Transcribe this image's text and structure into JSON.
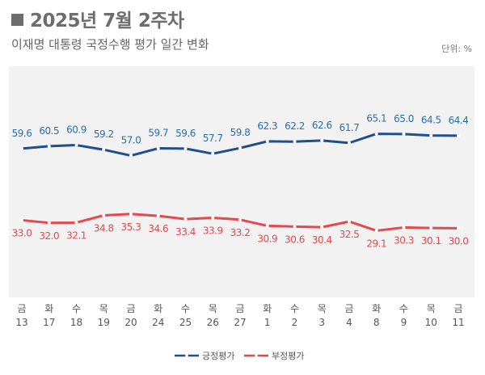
{
  "header": {
    "title": "2025년 7월 2주차",
    "subtitle": "이재명 대통령 국정수행 평가 일간 변화",
    "unit": "단위: %"
  },
  "chart_data": {
    "type": "line",
    "title": "2025년 7월 2주차",
    "subtitle": "이재명 대통령 국정수행 평가 일간 변화",
    "ylabel": "",
    "unit": "%",
    "categories": [
      [
        "금",
        "13"
      ],
      [
        "화",
        "17"
      ],
      [
        "수",
        "18"
      ],
      [
        "목",
        "19"
      ],
      [
        "금",
        "20"
      ],
      [
        "화",
        "24"
      ],
      [
        "수",
        "25"
      ],
      [
        "목",
        "26"
      ],
      [
        "금",
        "27"
      ],
      [
        "화",
        "1"
      ],
      [
        "수",
        "2"
      ],
      [
        "목",
        "3"
      ],
      [
        "금",
        "4"
      ],
      [
        "화",
        "8"
      ],
      [
        "수",
        "9"
      ],
      [
        "목",
        "10"
      ],
      [
        "금",
        "11"
      ]
    ],
    "series": [
      {
        "name": "긍정평가",
        "color": "#1f4e8c",
        "label_color": "#2a6fb0",
        "values": [
          59.6,
          60.5,
          60.9,
          59.2,
          57.0,
          59.7,
          59.6,
          57.7,
          59.8,
          62.3,
          62.2,
          62.6,
          61.7,
          65.1,
          65.0,
          64.5,
          64.4
        ]
      },
      {
        "name": "부정평가",
        "color": "#e5484d",
        "label_color": "#e5484d",
        "values": [
          33.0,
          32.0,
          32.1,
          34.8,
          35.3,
          34.6,
          33.4,
          33.9,
          33.2,
          30.9,
          30.6,
          30.4,
          32.5,
          29.1,
          30.3,
          30.1,
          30.0
        ]
      }
    ],
    "ylim": [
      4.3,
      90.2
    ],
    "grid": false,
    "legend": "bottom-right",
    "plot_background": "#f2f2f2"
  }
}
